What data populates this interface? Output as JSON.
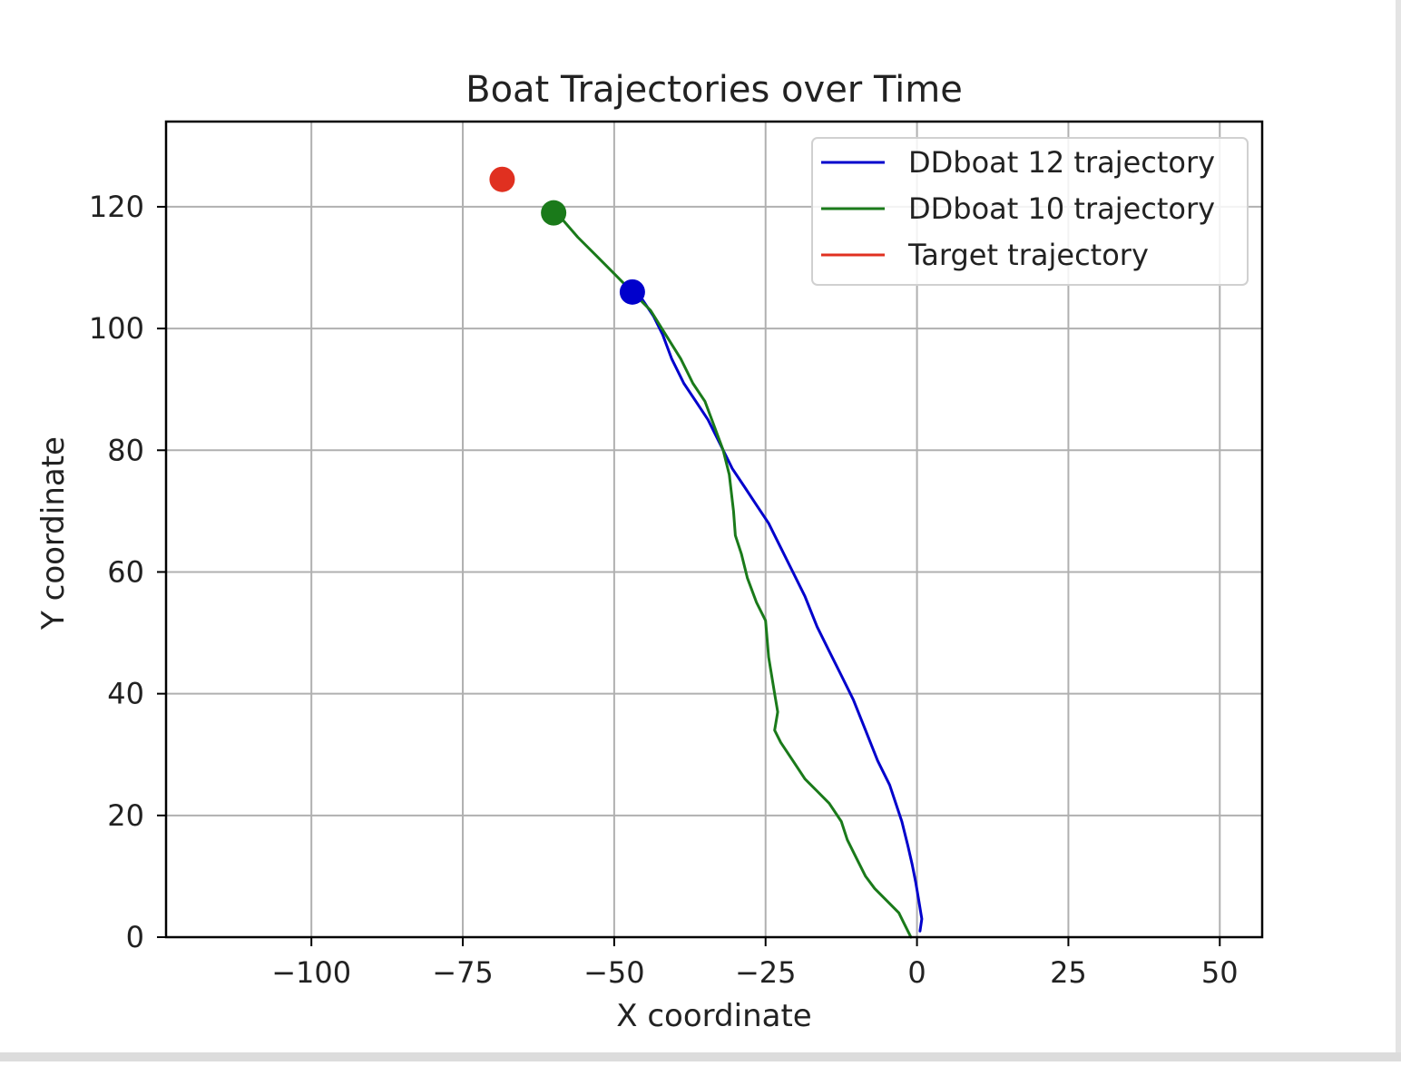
{
  "chart_data": {
    "type": "line",
    "title": "Boat Trajectories over Time",
    "xlabel": "X coordinate",
    "ylabel": "Y coordinate",
    "xlim": [
      -124,
      57
    ],
    "ylim": [
      0,
      134
    ],
    "xticks": [
      -100,
      -75,
      -50,
      -25,
      0,
      25,
      50
    ],
    "yticks": [
      0,
      20,
      40,
      60,
      80,
      100,
      120
    ],
    "xtick_labels": [
      "−100",
      "−75",
      "−50",
      "−25",
      "0",
      "25",
      "50"
    ],
    "ytick_labels": [
      "0",
      "20",
      "40",
      "60",
      "80",
      "100",
      "120"
    ],
    "grid": true,
    "legend": {
      "position": "top-right",
      "entries": [
        {
          "label": "DDboat 12 trajectory",
          "color": "#0000cc"
        },
        {
          "label": "DDboat 10 trajectory",
          "color": "#1a7a1a"
        },
        {
          "label": "Target trajectory",
          "color": "#e03020"
        }
      ]
    },
    "series": [
      {
        "name": "DDboat 12 trajectory",
        "color": "#0000cc",
        "x": [
          0.5,
          0.8,
          0.3,
          -0.2,
          -0.8,
          -1.5,
          -2.5,
          -3.5,
          -4.5,
          -6.5,
          -8.5,
          -10.5,
          -12.5,
          -14.5,
          -16.5,
          -18.5,
          -20.5,
          -22.5,
          -24.5,
          -26.5,
          -28.5,
          -30.5,
          -32.5,
          -34.5,
          -36.5,
          -38.5,
          -40.5,
          -42.0,
          -43.5,
          -45.5,
          -47.0
        ],
        "y": [
          1,
          3,
          6,
          9,
          12,
          15,
          19,
          22,
          25,
          29,
          34,
          39,
          43,
          47,
          51,
          56,
          60,
          64,
          68,
          71,
          74,
          77,
          81,
          85,
          88,
          91,
          95,
          99,
          102,
          105,
          106
        ]
      },
      {
        "name": "DDboat 10 trajectory",
        "color": "#1a7a1a",
        "x": [
          -1.0,
          -2.0,
          -3.0,
          -5.0,
          -7.0,
          -8.5,
          -10.0,
          -11.5,
          -12.5,
          -14.5,
          -16.5,
          -18.5,
          -20.5,
          -22.5,
          -23.5,
          -23.0,
          -23.5,
          -24.0,
          -24.5,
          -25.0,
          -26.5,
          -28.0,
          -29.0,
          -30.0,
          -30.3,
          -31.0,
          -32.0,
          -33.5,
          -35.0,
          -37.0,
          -39.0,
          -41.5,
          -44.0,
          -47.0,
          -50.0,
          -53.0,
          -56.0,
          -59.5
        ],
        "y": [
          0,
          2,
          4,
          6,
          8,
          10,
          13,
          16,
          19,
          22,
          24,
          26,
          29,
          32,
          34,
          37,
          40,
          43,
          46,
          52,
          55,
          59,
          63,
          66,
          70,
          76,
          80,
          84,
          88,
          91,
          95,
          99,
          103,
          106,
          109,
          112,
          115,
          119
        ]
      }
    ],
    "markers": [
      {
        "series": "Target trajectory",
        "x": -68.5,
        "y": 124.5,
        "color": "#e03020"
      },
      {
        "series": "DDboat 10 trajectory",
        "x": -60.0,
        "y": 119.0,
        "color": "#1a7a1a"
      },
      {
        "series": "DDboat 12 trajectory",
        "x": -47.0,
        "y": 106.0,
        "color": "#0000cc"
      }
    ]
  }
}
